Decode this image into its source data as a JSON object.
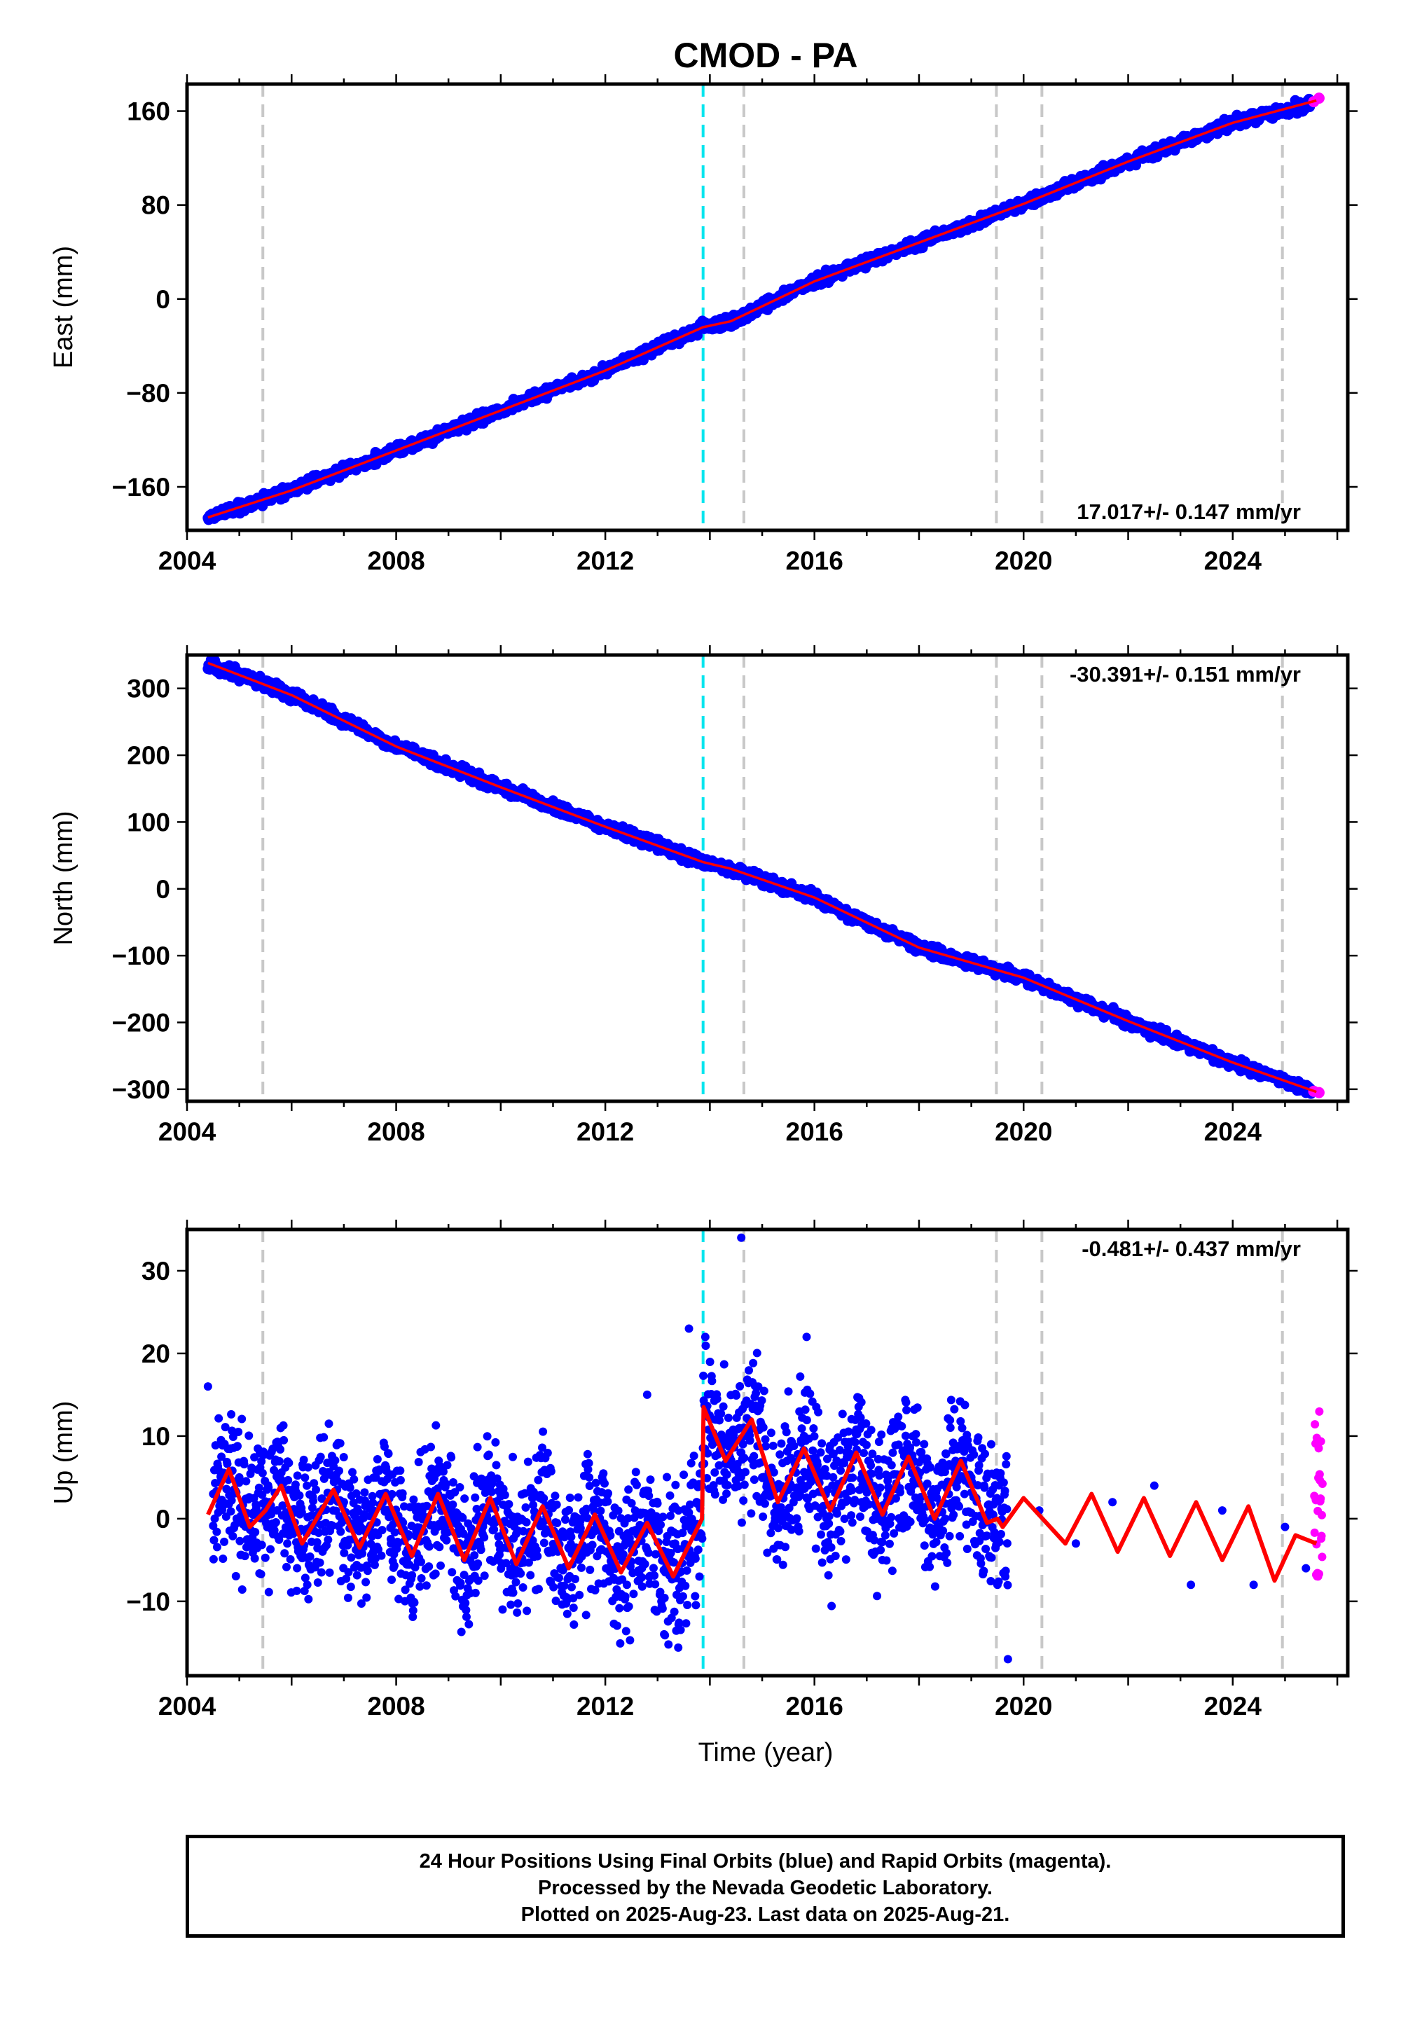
{
  "title": "CMOD - PA",
  "xlabel": "Time (year)",
  "footer": {
    "line1": "24 Hour Positions Using Final Orbits (blue) and Rapid Orbits (magenta).",
    "line2": "Processed by the Nevada Geodetic Laboratory.",
    "line3": "Plotted on 2025-Aug-23. Last data on 2025-Aug-21."
  },
  "colors": {
    "final": "#0000ff",
    "rapid": "#ff00ff",
    "model": "#ff0000",
    "equipment": "#c8c8c8",
    "event": "#00e5ee"
  },
  "chart_data": [
    {
      "type": "scatter",
      "component": "east",
      "ylabel": "East (mm)",
      "rate_label": "17.017+/- 0.147 mm/yr",
      "xlim": [
        2004.0,
        2026.2
      ],
      "ylim": [
        -197,
        183
      ],
      "x_ticks": [
        2004,
        2008,
        2012,
        2016,
        2020,
        2024
      ],
      "y_ticks": [
        -160,
        -80,
        0,
        80,
        160
      ],
      "series": [
        {
          "name": "Final Orbits",
          "role": "final",
          "x": [
            2004.4,
            2006.0,
            2008.0,
            2010.0,
            2012.0,
            2013.87,
            2014.4,
            2016.0,
            2018.0,
            2020.0,
            2022.0,
            2024.0,
            2025.5
          ],
          "values": [
            -186,
            -163,
            -129,
            -95,
            -61,
            -24,
            -19,
            15,
            48,
            81,
            117,
            150,
            166
          ]
        },
        {
          "name": "Rapid Orbits",
          "role": "rapid",
          "x": [
            2025.55,
            2025.65
          ],
          "values": [
            168,
            171
          ]
        },
        {
          "name": "Model",
          "role": "model",
          "x": [
            2004.4,
            2006.0,
            2008.0,
            2010.0,
            2012.0,
            2013.87,
            2014.4,
            2016.0,
            2018.0,
            2020.0,
            2022.0,
            2024.0,
            2025.6
          ],
          "values": [
            -186,
            -163,
            -129,
            -95,
            -61,
            -24,
            -19,
            15,
            48,
            81,
            117,
            150,
            169
          ]
        }
      ]
    },
    {
      "type": "scatter",
      "component": "north",
      "ylabel": "North (mm)",
      "rate_label": "-30.391+/- 0.151 mm/yr",
      "xlim": [
        2004.0,
        2026.2
      ],
      "ylim": [
        -318,
        350
      ],
      "x_ticks": [
        2004,
        2008,
        2012,
        2016,
        2020,
        2024
      ],
      "y_ticks": [
        -300,
        -200,
        -100,
        0,
        100,
        200,
        300
      ],
      "series": [
        {
          "name": "Final Orbits",
          "role": "final",
          "x": [
            2004.4,
            2006.0,
            2008.0,
            2010.0,
            2012.0,
            2013.87,
            2014.4,
            2016.0,
            2018.0,
            2020.0,
            2022.0,
            2024.0,
            2025.5
          ],
          "values": [
            338,
            290,
            213,
            152,
            93,
            40,
            30,
            -13,
            -88,
            -133,
            -198,
            -260,
            -302
          ]
        },
        {
          "name": "Rapid Orbits",
          "role": "rapid",
          "x": [
            2025.55,
            2025.65
          ],
          "values": [
            -303,
            -305
          ]
        },
        {
          "name": "Model",
          "role": "model",
          "x": [
            2004.4,
            2006.0,
            2008.0,
            2010.0,
            2012.0,
            2013.87,
            2014.4,
            2016.0,
            2018.0,
            2020.0,
            2022.0,
            2024.0,
            2025.6
          ],
          "values": [
            338,
            290,
            213,
            152,
            93,
            40,
            30,
            -13,
            -88,
            -133,
            -198,
            -260,
            -304
          ]
        }
      ]
    },
    {
      "type": "scatter",
      "component": "up",
      "ylabel": "Up (mm)",
      "rate_label": "-0.481+/- 0.437 mm/yr",
      "xlim": [
        2004.0,
        2026.2
      ],
      "ylim": [
        -19,
        35
      ],
      "x_ticks": [
        2004,
        2008,
        2012,
        2016,
        2020,
        2024
      ],
      "y_ticks": [
        -10,
        0,
        10,
        20,
        30
      ],
      "series": [
        {
          "name": "Final Orbits",
          "role": "final",
          "x": [
            2004.5,
            2005.0,
            2005.6,
            2006.2,
            2007.0,
            2007.9,
            2008.8,
            2009.8,
            2010.8,
            2011.2,
            2012.0,
            2012.7,
            2013.4,
            2013.8,
            2014.1,
            2014.6,
            2015.0,
            2015.8,
            2016.2,
            2016.9,
            2017.3,
            2017.9,
            2018.5,
            2019.0,
            2019.5,
            2020.3,
            2021.0,
            2021.7,
            2022.5,
            2023.2,
            2023.8,
            2024.4,
            2025.0,
            2025.4,
            2004.4,
            2012.8,
            2013.6,
            2014.6,
            2015.85,
            2019.7
          ],
          "values": [
            3,
            5,
            1,
            -4,
            2,
            -3,
            3,
            -5,
            1,
            -6,
            2,
            -6,
            1,
            -7,
            12,
            8,
            5,
            10,
            6,
            2,
            -5,
            7,
            0,
            5,
            -8,
            1,
            -3,
            2,
            4,
            -8,
            1,
            -8,
            -1,
            -6,
            16,
            15,
            23,
            34,
            22,
            -17
          ]
        },
        {
          "name": "Rapid Orbits",
          "role": "rapid",
          "x": [
            2025.58,
            2025.6,
            2025.62,
            2025.64,
            2025.66,
            2025.68,
            2025.7
          ],
          "values": [
            -7,
            -5,
            -2,
            1,
            3,
            9,
            13
          ]
        },
        {
          "name": "Model",
          "role": "model",
          "x": [
            2004.4,
            2004.8,
            2005.2,
            2005.5,
            2005.8,
            2006.2,
            2006.8,
            2007.3,
            2007.8,
            2008.3,
            2008.8,
            2009.3,
            2009.8,
            2010.3,
            2010.8,
            2011.3,
            2011.8,
            2012.3,
            2012.8,
            2013.3,
            2013.85,
            2013.88,
            2014.3,
            2014.8,
            2015.3,
            2015.8,
            2016.3,
            2016.8,
            2017.3,
            2017.8,
            2018.3,
            2018.8,
            2019.3,
            2019.5,
            2019.6,
            2020.0,
            2020.8,
            2021.3,
            2021.8,
            2022.3,
            2022.8,
            2023.3,
            2023.8,
            2024.3,
            2024.8,
            2025.2,
            2025.6
          ],
          "values": [
            0.5,
            6,
            -1,
            1,
            4,
            -3,
            3.5,
            -3.5,
            3,
            -4.5,
            3,
            -5,
            2.5,
            -5.5,
            1.5,
            -6,
            0.5,
            -6.5,
            -0.5,
            -7,
            0,
            13.5,
            7,
            12,
            2,
            8.5,
            1,
            8,
            0.5,
            7.5,
            0,
            7,
            -0.5,
            0,
            -1,
            2.5,
            -3,
            3,
            -4,
            2.5,
            -4.5,
            2,
            -5,
            1.5,
            -7.5,
            -2,
            -3
          ]
        }
      ]
    }
  ]
}
